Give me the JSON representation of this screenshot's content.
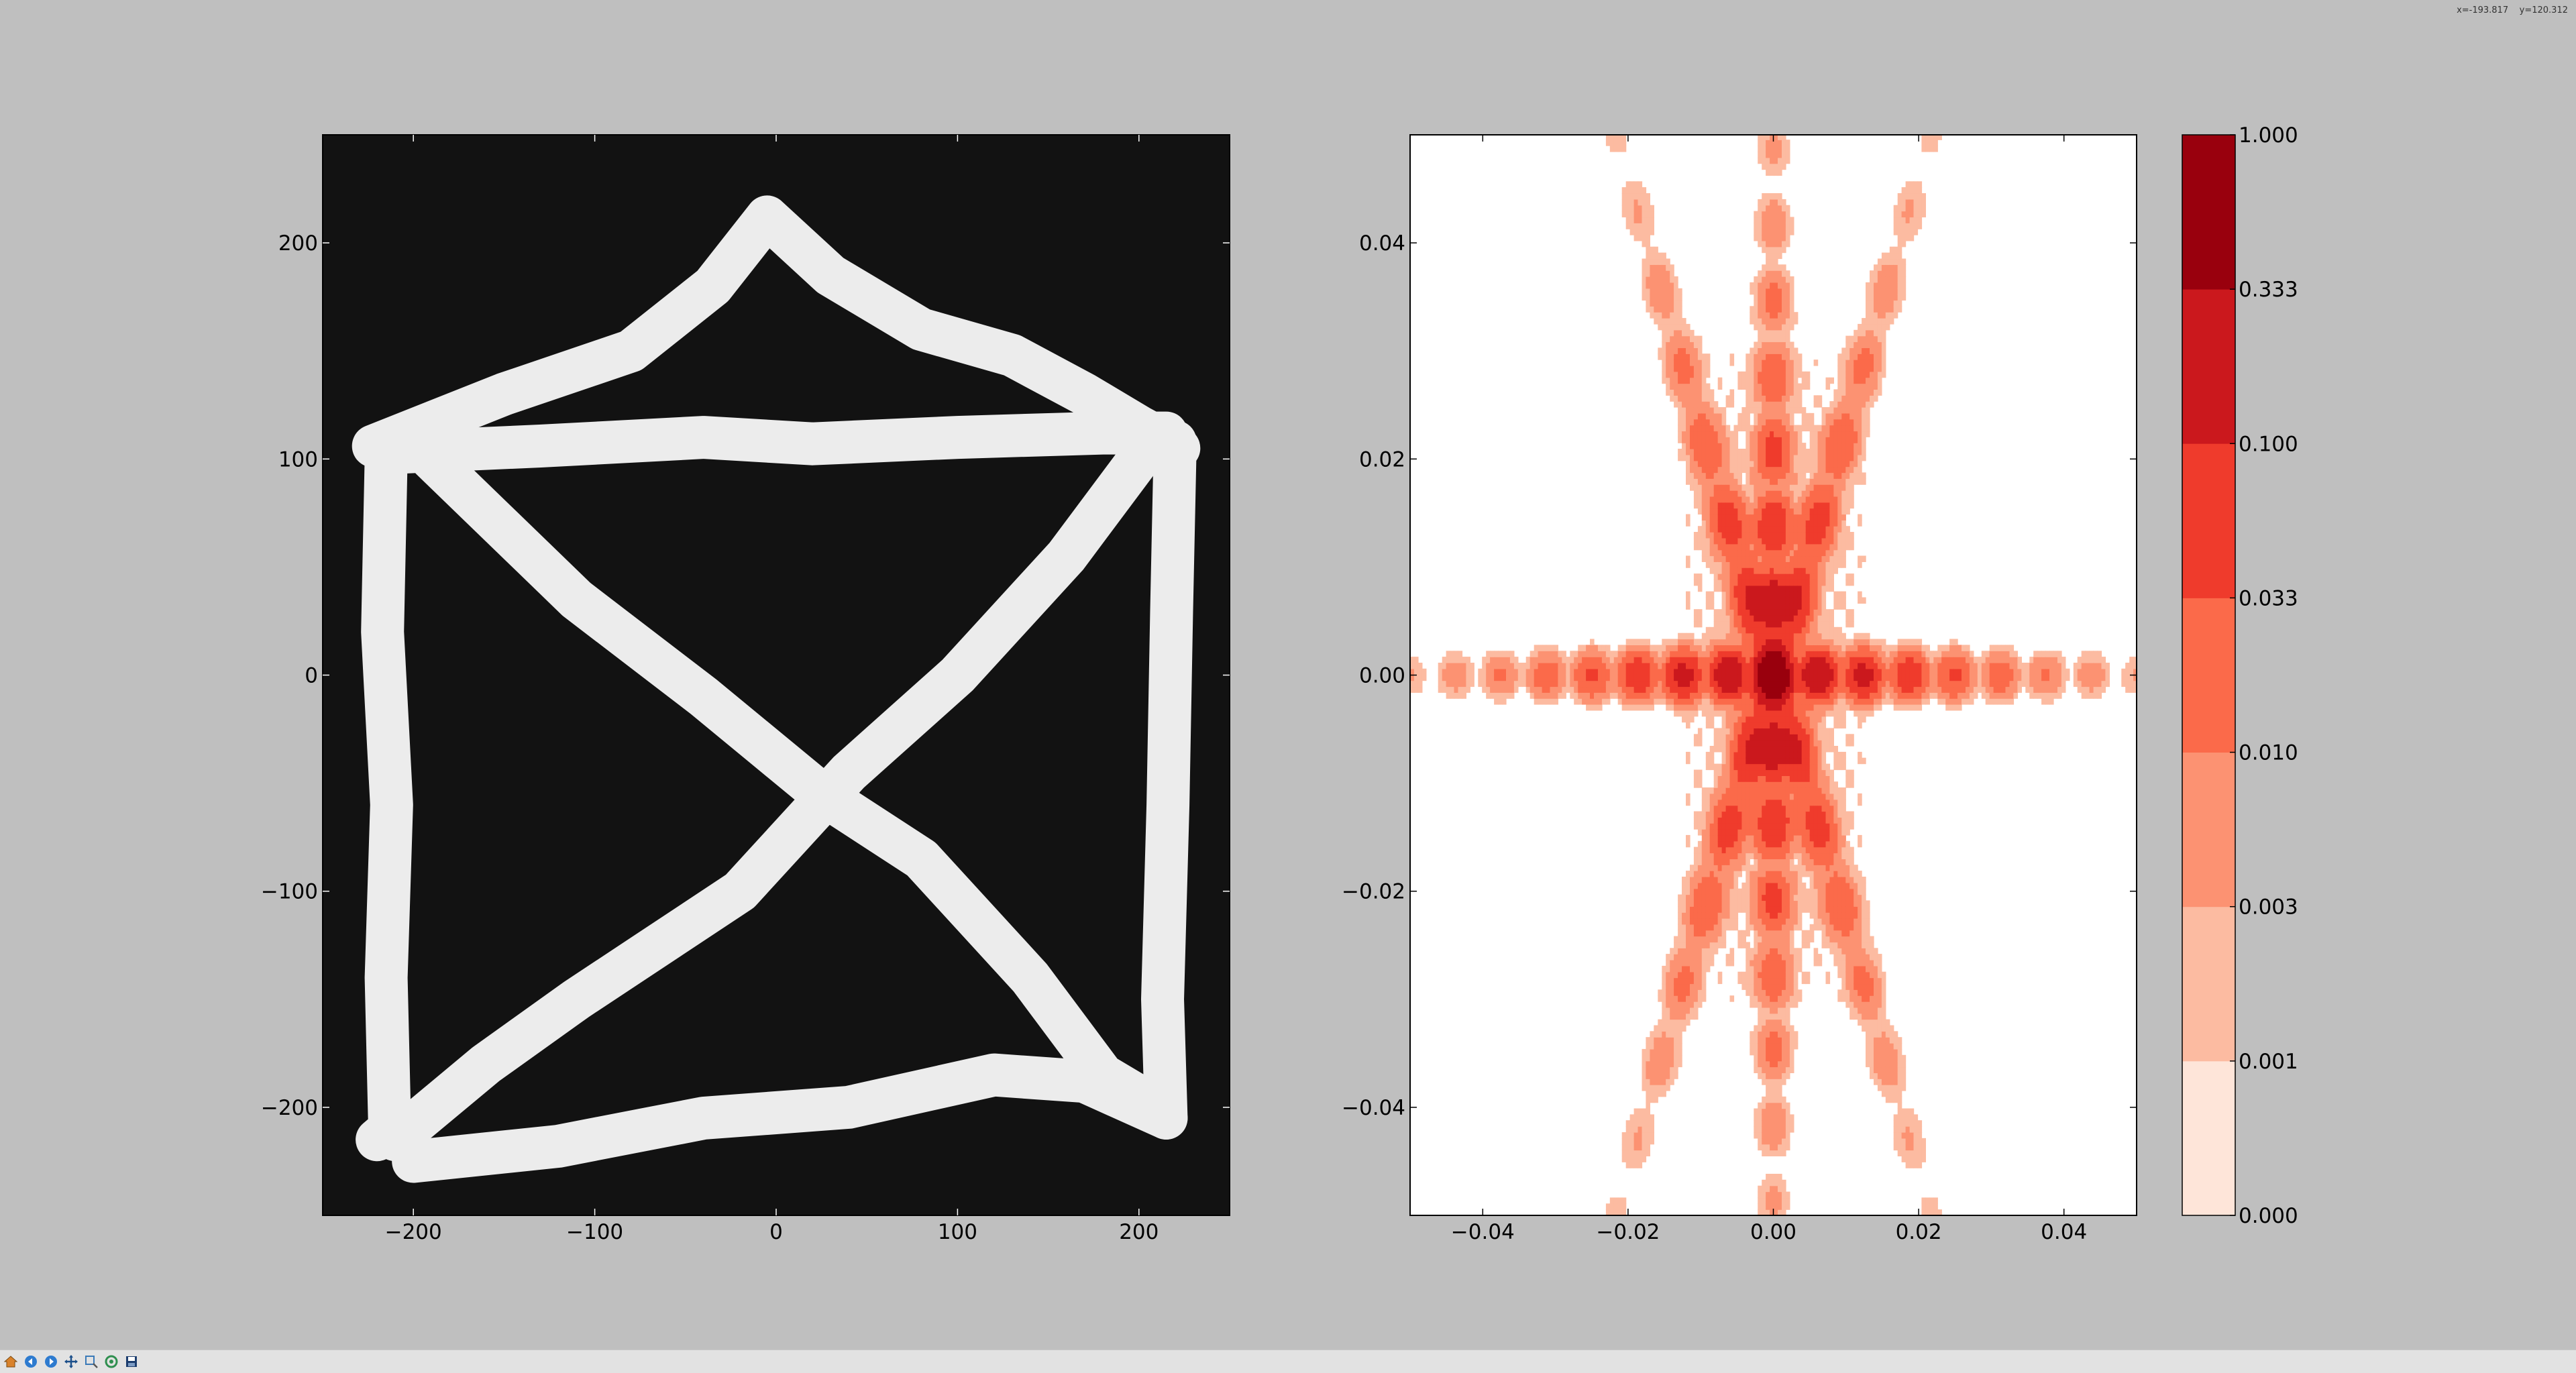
{
  "chart_data": [
    {
      "type": "image",
      "description_of_content": "binary image of a hand-drawn house shape: square with both diagonals and a triangular roof, white strokes on black",
      "xlim": [
        -250,
        250
      ],
      "ylim": [
        -250,
        250
      ],
      "xticks": [
        -200,
        -100,
        0,
        100,
        200
      ],
      "yticks": [
        200,
        100,
        0,
        -100,
        -200
      ],
      "xtick_labels": [
        "−200",
        "−100",
        "0",
        "100",
        "200"
      ],
      "ytick_labels": [
        "200",
        "100",
        "0",
        "−100",
        "−200"
      ],
      "background_color": "#121212",
      "stroke_color": "#ececec",
      "strokes": [
        [
          [
            -222,
            106
          ],
          [
            -150,
            130
          ],
          [
            -80,
            150
          ],
          [
            -35,
            180
          ],
          [
            -5,
            212
          ],
          [
            30,
            185
          ],
          [
            80,
            160
          ],
          [
            130,
            148
          ],
          [
            170,
            130
          ],
          [
            200,
            115
          ],
          [
            222,
            105
          ]
        ],
        [
          [
            -210,
            103
          ],
          [
            -130,
            106
          ],
          [
            -40,
            110
          ],
          [
            20,
            107
          ],
          [
            100,
            110
          ],
          [
            180,
            112
          ],
          [
            215,
            112
          ]
        ],
        [
          [
            -215,
            100
          ],
          [
            -217,
            20
          ],
          [
            -212,
            -60
          ],
          [
            -215,
            -140
          ],
          [
            -213,
            -210
          ],
          [
            -220,
            -215
          ]
        ],
        [
          [
            -200,
            -225
          ],
          [
            -120,
            -218
          ],
          [
            -40,
            -205
          ],
          [
            40,
            -200
          ],
          [
            120,
            -185
          ],
          [
            170,
            -188
          ],
          [
            215,
            -205
          ]
        ],
        [
          [
            220,
            108
          ],
          [
            218,
            30
          ],
          [
            216,
            -60
          ],
          [
            213,
            -150
          ],
          [
            215,
            -205
          ]
        ],
        [
          [
            -190,
            100
          ],
          [
            -110,
            35
          ],
          [
            -40,
            -10
          ],
          [
            25,
            -55
          ],
          [
            80,
            -85
          ],
          [
            140,
            -140
          ],
          [
            180,
            -185
          ],
          [
            210,
            -200
          ]
        ],
        [
          [
            200,
            100
          ],
          [
            160,
            55
          ],
          [
            100,
            0
          ],
          [
            40,
            -45
          ],
          [
            -20,
            -100
          ],
          [
            -110,
            -150
          ],
          [
            -160,
            -180
          ],
          [
            -210,
            -215
          ]
        ]
      ]
    },
    {
      "type": "filled_contour",
      "description_of_content": "log-scale magnitude of the 2D Fourier transform of the left image, centered at the origin",
      "xlim": [
        -0.05,
        0.05
      ],
      "ylim": [
        -0.05,
        0.05
      ],
      "xticks": [
        -0.04,
        -0.02,
        0.0,
        0.02,
        0.04
      ],
      "yticks": [
        0.04,
        0.02,
        0.0,
        -0.02,
        -0.04
      ],
      "xtick_labels": [
        "−0.04",
        "−0.02",
        "0.00",
        "0.02",
        "0.04"
      ],
      "ytick_labels": [
        "0.04",
        "0.02",
        "0.00",
        "−0.02",
        "−0.04"
      ],
      "levels": [
        0.0,
        0.001,
        0.003,
        0.01,
        0.033,
        0.1,
        0.333,
        1.0
      ],
      "level_colors": [
        "#fee5d9",
        "#fcbba1",
        "#fc9272",
        "#fb6a4a",
        "#ef3b2c",
        "#cb181d",
        "#99000d"
      ],
      "colorbar_labels": [
        "1.000",
        "0.333",
        "0.100",
        "0.033",
        "0.010",
        "0.003",
        "0.001",
        "0.000"
      ]
    }
  ],
  "toolbar": {
    "buttons": [
      {
        "name": "home-icon",
        "color": "#d9822b"
      },
      {
        "name": "back-icon",
        "color": "#2e7bcf"
      },
      {
        "name": "forward-icon",
        "color": "#2e7bcf"
      },
      {
        "name": "pan-icon",
        "color": "#1b4f8a"
      },
      {
        "name": "zoom-icon",
        "color": "#3a7ab8"
      },
      {
        "name": "subplots-icon",
        "color": "#2f8f4f"
      },
      {
        "name": "save-icon",
        "color": "#1c3d6e"
      }
    ]
  },
  "status": {
    "coords_text": "x=-193.817    y=120.312"
  }
}
